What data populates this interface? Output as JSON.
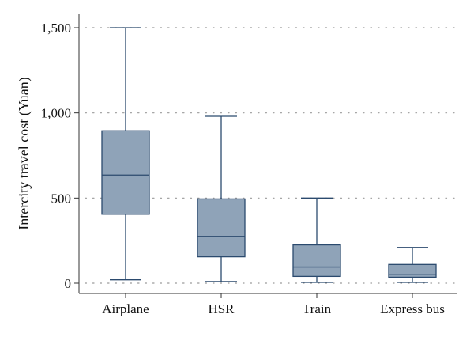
{
  "chart_data": {
    "type": "box",
    "ylabel": "Intercity travel cost (Yuan)",
    "xlabel": "",
    "ylim": [
      0,
      1500
    ],
    "yticks": [
      0,
      500,
      1000,
      1500
    ],
    "ytick_labels": [
      "0",
      "500",
      "1,000",
      "1,500"
    ],
    "grid": "horizontal dotted",
    "categories": [
      "Airplane",
      "HSR",
      "Train",
      "Express bus"
    ],
    "boxes": [
      {
        "category": "Airplane",
        "min": 20,
        "q1": 405,
        "median": 635,
        "q3": 895,
        "max": 1500
      },
      {
        "category": "HSR",
        "min": 10,
        "q1": 155,
        "median": 275,
        "q3": 495,
        "max": 980
      },
      {
        "category": "Train",
        "min": 5,
        "q1": 40,
        "median": 95,
        "q3": 225,
        "max": 500
      },
      {
        "category": "Express bus",
        "min": 5,
        "q1": 35,
        "median": 50,
        "q3": 110,
        "max": 210
      }
    ],
    "colors": {
      "box_fill": "#8fa3b8",
      "box_stroke": "#2b4a6e",
      "grid": "#9a9a9a",
      "axis": "#333333"
    }
  }
}
